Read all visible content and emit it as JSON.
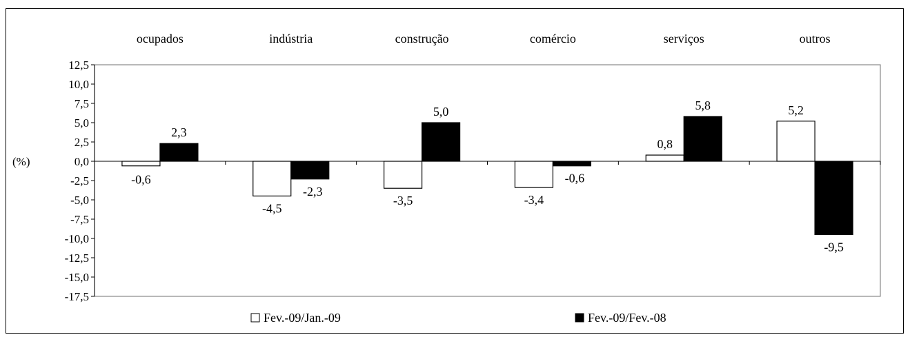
{
  "chart_data": {
    "type": "bar",
    "categories": [
      "ocupados",
      "indústria",
      "construção",
      "comércio",
      "serviços",
      "outros"
    ],
    "series": [
      {
        "name": "Fev.-09/Jan.-09",
        "values": [
          -0.6,
          -4.5,
          -3.5,
          -3.4,
          0.8,
          5.2
        ],
        "color": "#ffffff",
        "labels": [
          "-0,6",
          "-4,5",
          "-3,5",
          "-3,4",
          "0,8",
          "5,2"
        ]
      },
      {
        "name": "Fev.-09/Fev.-08",
        "values": [
          2.3,
          -2.3,
          5.0,
          -0.6,
          5.8,
          -9.5
        ],
        "color": "#000000",
        "labels": [
          "2,3",
          "-2,3",
          "5,0",
          "-0,6",
          "5,8",
          "-9,5"
        ]
      }
    ],
    "ylabel": "(%)",
    "ylim": [
      -17.5,
      12.5
    ],
    "yticks": [
      12.5,
      10.0,
      7.5,
      5.0,
      2.5,
      0.0,
      -2.5,
      -5.0,
      -7.5,
      -10.0,
      -12.5,
      -15.0,
      -17.5
    ],
    "ytick_labels": [
      "12,5",
      "10,0",
      "7,5",
      "5,0",
      "2,5",
      "0,0",
      "-2,5",
      "-5,0",
      "-7,5",
      "-10,0",
      "-12,5",
      "-15,0",
      "-17,5"
    ],
    "category_label_position": "top",
    "legend_position": "bottom",
    "grid": false
  }
}
